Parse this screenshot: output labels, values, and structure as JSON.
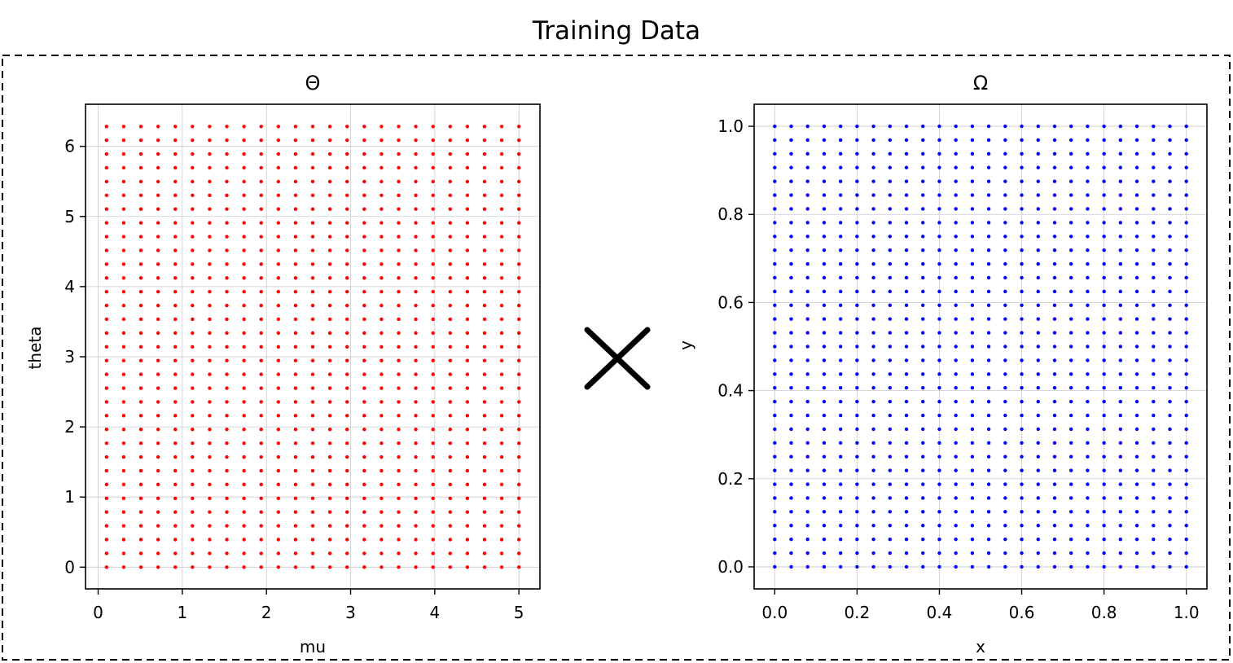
{
  "figure": {
    "title": "Training Data",
    "operator_symbol": "x-cross"
  },
  "chart_data": [
    {
      "type": "scatter",
      "title": "Θ",
      "xlabel": "mu",
      "ylabel": "theta",
      "xlim": [
        -0.15,
        5.25
      ],
      "ylim": [
        -0.31,
        6.6
      ],
      "xticks": [
        0,
        1,
        2,
        3,
        4,
        5
      ],
      "yticks": [
        0,
        1,
        2,
        3,
        4,
        5,
        6
      ],
      "xtick_labels": [
        "0",
        "1",
        "2",
        "3",
        "4",
        "5"
      ],
      "ytick_labels": [
        "0",
        "1",
        "2",
        "3",
        "4",
        "5",
        "6"
      ],
      "grid": true,
      "color": "#ff0000",
      "marker_size": 2.2,
      "points_grid": {
        "x_start": 0.1,
        "x_end": 5.0,
        "x_count": 25,
        "y_start": 0.0,
        "y_end": 6.2832,
        "y_count": 33
      }
    },
    {
      "type": "scatter",
      "title": "Ω",
      "xlabel": "x",
      "ylabel": "y",
      "xlim": [
        -0.05,
        1.05
      ],
      "ylim": [
        -0.05,
        1.05
      ],
      "xticks": [
        0.0,
        0.2,
        0.4,
        0.6,
        0.8,
        1.0
      ],
      "yticks": [
        0.0,
        0.2,
        0.4,
        0.6,
        0.8,
        1.0
      ],
      "xtick_labels": [
        "0.0",
        "0.2",
        "0.4",
        "0.6",
        "0.8",
        "1.0"
      ],
      "ytick_labels": [
        "0.0",
        "0.2",
        "0.4",
        "0.6",
        "0.8",
        "1.0"
      ],
      "grid": true,
      "color": "#0000ff",
      "marker_size": 2.2,
      "points_grid": {
        "x_start": 0.0,
        "x_end": 1.0,
        "x_count": 26,
        "y_start": 0.0,
        "y_end": 1.0,
        "y_count": 33
      }
    }
  ]
}
